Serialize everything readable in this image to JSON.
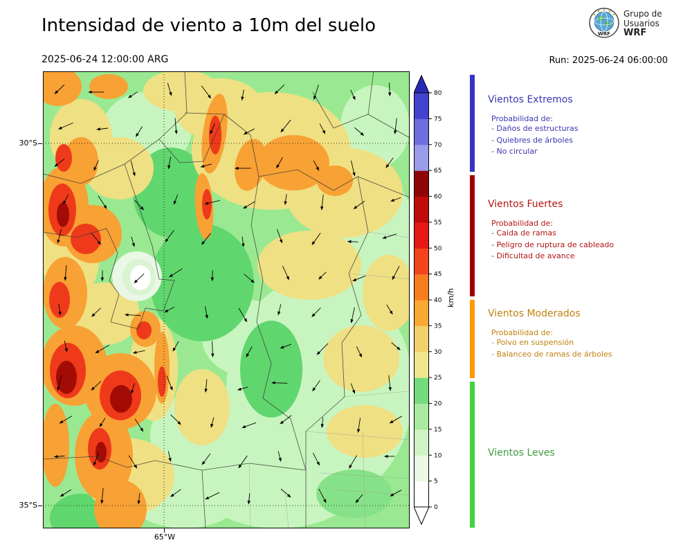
{
  "header": {
    "title": "Intensidad de viento a 10m del suelo",
    "valid_time": "2025-06-24 12:00:00 ARG",
    "run_label": "Run: 2025-06-24 06:00:00",
    "logo_text": [
      "Grupo de",
      "Usuarios",
      "WRF"
    ]
  },
  "map": {
    "lat_ticks": [
      "30°S",
      "35°S"
    ],
    "lon_ticks": [
      "65°W"
    ]
  },
  "colorbar": {
    "unit": "km/h",
    "tick_values": [
      0,
      5,
      10,
      15,
      20,
      25,
      30,
      35,
      40,
      45,
      50,
      55,
      60,
      65,
      70,
      75,
      80
    ],
    "max_value": 80,
    "segment_colors": [
      "#ffffff",
      "#eaf9e3",
      "#d0f3c6",
      "#a9e9a0",
      "#74db7c",
      "#f0e68c",
      "#f3d06e",
      "#f9a832",
      "#f87d21",
      "#f4441c",
      "#e31b14",
      "#c00b0b",
      "#8f0507",
      "#9b9bec",
      "#6e6ee0",
      "#4343cf"
    ],
    "over_color": "#2929b8",
    "under_color": "#ffffff"
  },
  "legend": {
    "sections": [
      {
        "title": "Vientos Extremos",
        "text_color": "#3a35b0",
        "bar_color": "#3632c8",
        "prob_label": "Probabilidad de:",
        "items": [
          "- Daños de estructuras",
          "- Quiebres de árboles",
          "- No circular"
        ]
      },
      {
        "title": "Vientos Fuertes",
        "text_color": "#b01414",
        "bar_color": "#a00000",
        "prob_label": "Probabilidad de:",
        "items": [
          "- Caida de ramas",
          "- Peligro de ruptura de cableado",
          "- Dificultad de avance"
        ]
      },
      {
        "title": "Vientos Moderados",
        "text_color": "#c08010",
        "bar_color": "#ff9800",
        "prob_label": "Probabilidad de:",
        "items": [
          "- Polvo en suspensión",
          "- Balanceo de ramas de árboles"
        ]
      },
      {
        "title": "Vientos Leves",
        "text_color": "#3f9e3f",
        "bar_color": "#41d341",
        "prob_label": "",
        "items": []
      }
    ]
  }
}
